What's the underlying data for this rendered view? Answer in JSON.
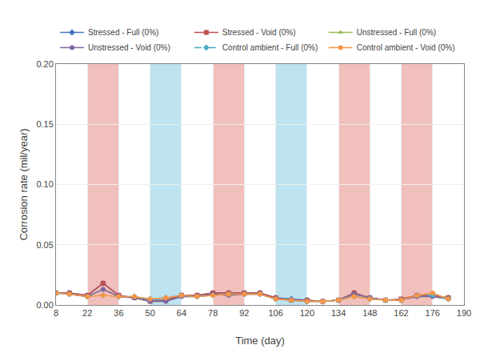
{
  "chart_data": {
    "type": "line",
    "xlabel": "Time (day)",
    "ylabel": "Corrosion rate (mil/year)",
    "x": [
      8,
      14,
      22,
      29,
      36,
      43,
      50,
      57,
      64,
      71,
      78,
      85,
      92,
      99,
      106,
      113,
      120,
      127,
      134,
      141,
      148,
      155,
      162,
      169,
      176,
      183
    ],
    "series": [
      {
        "name": "Stressed - Full (0%)",
        "color": "#4472C4",
        "marker": "diamond",
        "line_style": "solid",
        "values": [
          0.01,
          0.01,
          0.008,
          0.018,
          0.008,
          0.006,
          0.004,
          0.004,
          0.008,
          0.008,
          0.01,
          0.01,
          0.01,
          0.01,
          0.006,
          0.005,
          0.004,
          0.003,
          0.004,
          0.01,
          0.006,
          0.004,
          0.004,
          0.008,
          0.008,
          0.006
        ]
      },
      {
        "name": "Stressed - Void (0%)",
        "color": "#C0504D",
        "marker": "square",
        "line_style": "solid",
        "values": [
          0.01,
          0.01,
          0.008,
          0.018,
          0.008,
          0.006,
          0.003,
          0.004,
          0.008,
          0.008,
          0.01,
          0.01,
          0.01,
          0.01,
          0.006,
          0.004,
          0.004,
          0.003,
          0.004,
          0.01,
          0.006,
          0.004,
          0.005,
          0.008,
          0.008,
          0.006
        ]
      },
      {
        "name": "Unstressed - Full (0%)",
        "color": "#9BBB59",
        "marker": "triangle-up",
        "line_style": "solid",
        "values": [
          0.01,
          0.009,
          0.007,
          0.013,
          0.007,
          0.006,
          0.003,
          0.003,
          0.007,
          0.007,
          0.009,
          0.008,
          0.009,
          0.009,
          0.005,
          0.004,
          0.003,
          0.003,
          0.004,
          0.009,
          0.006,
          0.004,
          0.004,
          0.007,
          0.007,
          0.005
        ]
      },
      {
        "name": "Unstressed - Void (0%)",
        "color": "#8064A2",
        "marker": "circle",
        "line_style": "solid",
        "values": [
          0.01,
          0.009,
          0.007,
          0.013,
          0.007,
          0.006,
          0.003,
          0.003,
          0.007,
          0.007,
          0.009,
          0.008,
          0.009,
          0.009,
          0.005,
          0.004,
          0.003,
          0.003,
          0.004,
          0.009,
          0.006,
          0.004,
          0.004,
          0.007,
          0.007,
          0.005
        ]
      },
      {
        "name": "Control ambient - Full (0%)",
        "color": "#4BACC6",
        "marker": "diamond",
        "line_style": "dashed",
        "values": [
          0.01,
          0.009,
          0.007,
          0.008,
          0.007,
          0.007,
          0.005,
          0.006,
          0.008,
          0.007,
          0.008,
          0.009,
          0.009,
          0.009,
          0.005,
          0.004,
          0.003,
          0.003,
          0.004,
          0.007,
          0.005,
          0.004,
          0.004,
          0.008,
          0.008,
          0.005
        ]
      },
      {
        "name": "Control ambient - Void (0%)",
        "color": "#F79646",
        "marker": "circle",
        "line_style": "solid",
        "values": [
          0.01,
          0.009,
          0.007,
          0.008,
          0.007,
          0.007,
          0.005,
          0.006,
          0.008,
          0.007,
          0.008,
          0.009,
          0.009,
          0.009,
          0.005,
          0.004,
          0.003,
          0.003,
          0.004,
          0.007,
          0.005,
          0.004,
          0.004,
          0.008,
          0.01,
          0.005
        ]
      }
    ],
    "shaded_bands": [
      {
        "x0": 22,
        "x1": 36,
        "color": "#F2C0BC"
      },
      {
        "x0": 78,
        "x1": 92,
        "color": "#F2C0BC"
      },
      {
        "x0": 134,
        "x1": 148,
        "color": "#F2C0BC"
      },
      {
        "x0": 162,
        "x1": 176,
        "color": "#F2C0BC"
      },
      {
        "x0": 50,
        "x1": 64,
        "color": "#BDE3F0"
      },
      {
        "x0": 106,
        "x1": 120,
        "color": "#BDE3F0"
      }
    ],
    "xlim": [
      8,
      190
    ],
    "ylim": [
      0,
      0.2
    ],
    "xticks": [
      8,
      22,
      36,
      50,
      64,
      78,
      92,
      106,
      120,
      134,
      148,
      162,
      176,
      190
    ],
    "yticks": [
      {
        "value": 0,
        "label": "0.00"
      },
      {
        "value": 0.05,
        "label": "0.05"
      },
      {
        "value": 0.1,
        "label": "0.10"
      },
      {
        "value": 0.15,
        "label": "0.15"
      },
      {
        "value": 0.2,
        "label": "0.20"
      }
    ],
    "grid": true,
    "legend": "upper left"
  }
}
